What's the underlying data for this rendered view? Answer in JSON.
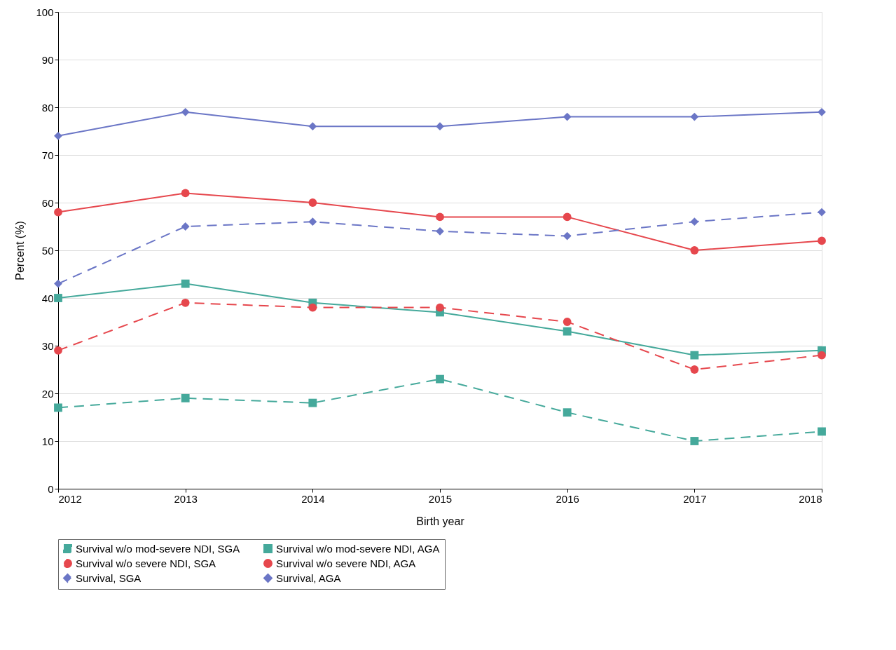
{
  "chart_data": {
    "type": "line",
    "xlabel": "Birth year",
    "ylabel": "Percent (%)",
    "x": [
      2012,
      2013,
      2014,
      2015,
      2016,
      2017,
      2018
    ],
    "xlim": [
      2012,
      2018
    ],
    "xticks": [
      2012,
      2013,
      2014,
      2015,
      2016,
      2017,
      2018
    ],
    "ylim": [
      0,
      100
    ],
    "yticks": [
      0,
      10,
      20,
      30,
      40,
      50,
      60,
      70,
      80,
      90,
      100
    ],
    "grid": "y",
    "legend": "bottom",
    "series": [
      {
        "name": "Survival w/o mod-severe NDI, SGA",
        "color": "#45a99b",
        "marker": "square",
        "line_style": "dashed",
        "values": [
          17,
          19,
          18,
          23,
          16,
          10,
          12
        ]
      },
      {
        "name": "Survival w/o mod-severe NDI, AGA",
        "color": "#45a99b",
        "marker": "square",
        "line_style": "solid",
        "values": [
          40,
          43,
          39,
          37,
          33,
          28,
          29
        ]
      },
      {
        "name": "Survival w/o severe NDI, SGA",
        "color": "#e6474d",
        "marker": "circle",
        "line_style": "dashed",
        "values": [
          29,
          39,
          38,
          38,
          35,
          25,
          28
        ]
      },
      {
        "name": "Survival w/o severe NDI, AGA",
        "color": "#e6474d",
        "marker": "circle",
        "line_style": "solid",
        "values": [
          58,
          62,
          60,
          57,
          57,
          50,
          52
        ]
      },
      {
        "name": "Survival, SGA",
        "color": "#6b76c6",
        "marker": "diamond",
        "line_style": "dashed",
        "values": [
          43,
          55,
          56,
          54,
          53,
          56,
          58
        ]
      },
      {
        "name": "Survival, AGA",
        "color": "#6b76c6",
        "marker": "diamond",
        "line_style": "solid",
        "values": [
          74,
          79,
          76,
          76,
          78,
          78,
          79
        ]
      }
    ]
  }
}
